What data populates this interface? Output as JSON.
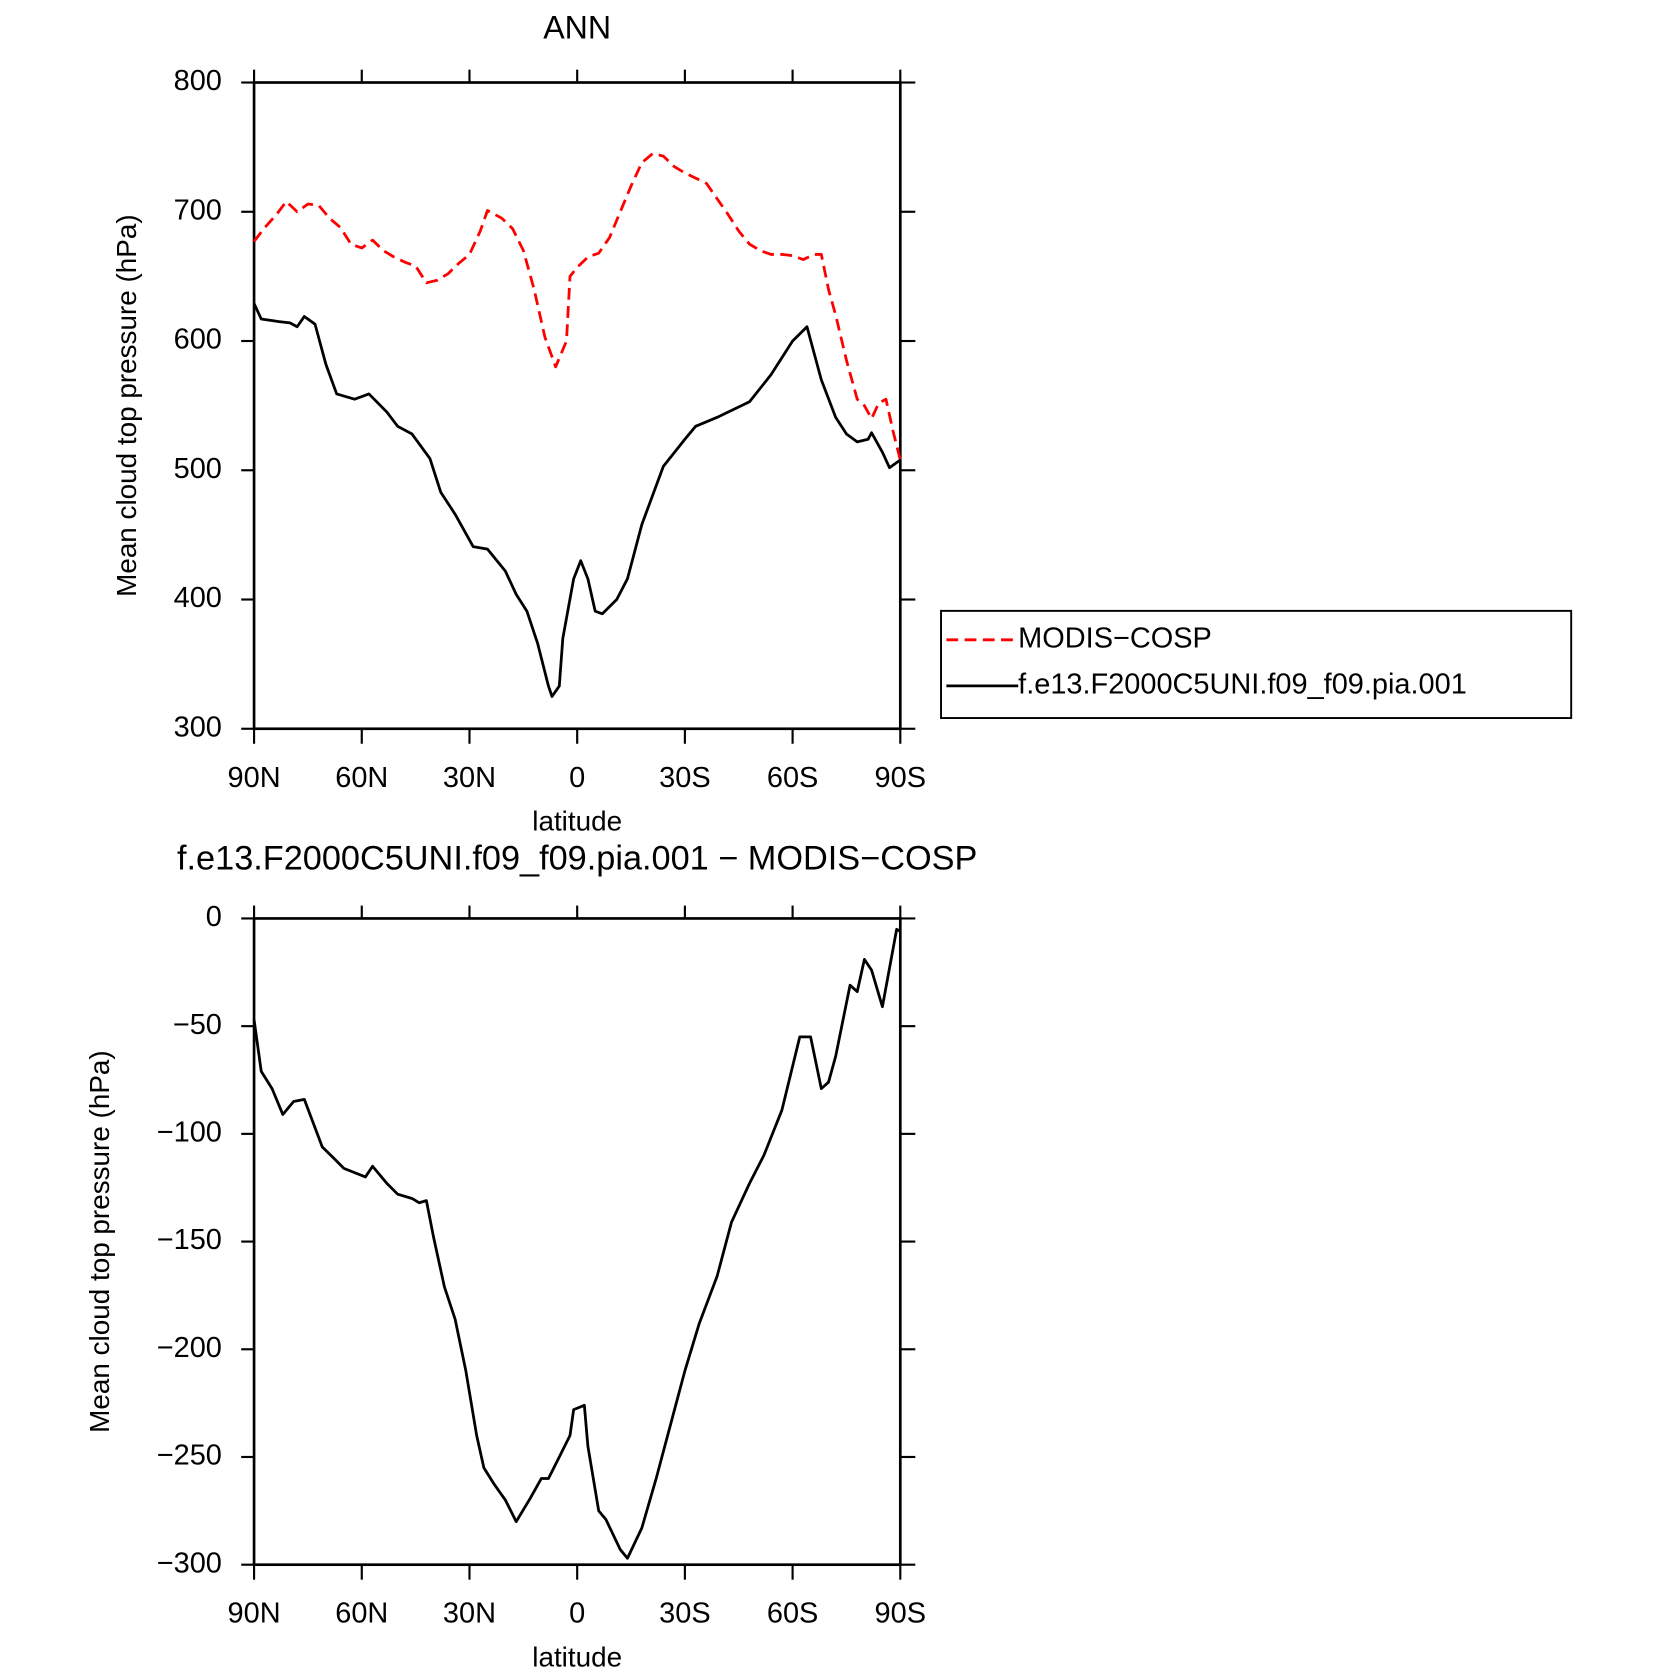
{
  "chart_data": [
    {
      "type": "line",
      "title": "ANN",
      "xlabel": "latitude",
      "ylabel": "Mean cloud top pressure (hPa)",
      "xlim": [
        90,
        -90
      ],
      "xticks": [
        {
          "value": 90,
          "label": "90N"
        },
        {
          "value": 60,
          "label": "60N"
        },
        {
          "value": 30,
          "label": "30N"
        },
        0,
        {
          "value": -30,
          "label": "30S"
        },
        {
          "value": -60,
          "label": "60S"
        },
        {
          "value": -90,
          "label": "90S"
        }
      ],
      "ylim": [
        300,
        800
      ],
      "yticks": [
        300,
        400,
        500,
        600,
        700,
        800
      ],
      "legend": "outside-right",
      "series": [
        {
          "name": "MODIS−COSP",
          "color": "#ff0000",
          "dash": "dashed",
          "x": [
            90,
            87,
            84,
            81,
            78,
            75,
            72,
            69,
            66,
            63,
            60,
            57,
            54,
            51,
            48,
            45,
            42,
            39,
            36,
            33,
            30,
            27,
            25,
            21,
            18,
            15,
            12,
            9,
            6,
            3,
            2,
            0,
            -3,
            -6,
            -9,
            -12,
            -15,
            -18,
            -21,
            -24,
            -27,
            -30,
            -33,
            -36,
            -39,
            -42,
            -45,
            -48,
            -51,
            -54,
            -57,
            -60,
            -63,
            -66,
            -68,
            -70,
            -72,
            -75,
            -78,
            -80,
            -82,
            -84,
            -86,
            -88,
            -90
          ],
          "values": [
            677,
            688,
            697,
            708,
            700,
            706,
            705,
            695,
            688,
            675,
            672,
            678,
            670,
            665,
            661,
            658,
            645,
            647,
            652,
            660,
            667,
            685,
            701,
            695,
            687,
            670,
            640,
            603,
            580,
            600,
            650,
            657,
            665,
            668,
            680,
            700,
            720,
            738,
            745,
            743,
            735,
            730,
            726,
            722,
            710,
            698,
            685,
            675,
            670,
            667,
            667,
            666,
            663,
            667,
            667,
            640,
            620,
            585,
            555,
            550,
            540,
            552,
            555,
            530,
            508
          ]
        },
        {
          "name": "f.e13.F2000C5UNI.f09_f09.pia.001",
          "color": "#000000",
          "dash": "solid",
          "x": [
            90,
            88,
            83,
            80,
            78,
            76,
            73,
            70,
            67,
            62,
            58,
            53,
            50,
            46,
            41,
            38,
            34,
            29,
            25,
            20,
            17,
            14,
            11,
            8,
            7,
            5,
            4,
            1,
            -1,
            -3,
            -5,
            -7,
            -11,
            -14,
            -18,
            -24,
            -30,
            -33,
            -39,
            -48,
            -54,
            -60,
            -64,
            -68,
            -72,
            -75,
            -78,
            -81,
            -82,
            -85,
            -87,
            -90
          ],
          "values": [
            629,
            617,
            615,
            614,
            611,
            619,
            613,
            582,
            559,
            555,
            559,
            545,
            534,
            528,
            509,
            483,
            466,
            441,
            439,
            422,
            404,
            391,
            366,
            333,
            325,
            333,
            370,
            416,
            430,
            416,
            391,
            389,
            400,
            416,
            458,
            503,
            524,
            534,
            541,
            553,
            574,
            600,
            611,
            570,
            541,
            528,
            522,
            524,
            529,
            514,
            502,
            508
          ]
        }
      ]
    },
    {
      "type": "line",
      "title": "f.e13.F2000C5UNI.f09_f09.pia.001 − MODIS−COSP",
      "xlabel": "latitude",
      "ylabel": "Mean cloud top pressure (hPa)",
      "xlim": [
        90,
        -90
      ],
      "xticks": [
        {
          "value": 90,
          "label": "90N"
        },
        {
          "value": 60,
          "label": "60N"
        },
        {
          "value": 30,
          "label": "30N"
        },
        0,
        {
          "value": -30,
          "label": "30S"
        },
        {
          "value": -60,
          "label": "60S"
        },
        {
          "value": -90,
          "label": "90S"
        }
      ],
      "ylim": [
        -300,
        0
      ],
      "yticks": [
        {
          "value": -300,
          "label": "−300"
        },
        {
          "value": -250,
          "label": "−250"
        },
        {
          "value": -200,
          "label": "−200"
        },
        {
          "value": -150,
          "label": "−150"
        },
        {
          "value": -100,
          "label": "−100"
        },
        {
          "value": -50,
          "label": "−50"
        },
        0
      ],
      "series": [
        {
          "color": "#000000",
          "dash": "solid",
          "x": [
            90,
            88,
            85,
            82,
            79,
            76,
            71,
            68,
            65,
            59,
            57,
            53,
            50,
            46,
            44,
            42,
            40,
            37,
            34,
            31,
            28,
            26,
            23,
            20,
            17,
            13,
            10,
            8,
            5,
            2,
            1,
            -2,
            -3,
            -6,
            -8,
            -12,
            -14,
            -18,
            -22,
            -26,
            -30,
            -34,
            -39,
            -43,
            -48,
            -52,
            -57,
            -62,
            -65,
            -68,
            -70,
            -72,
            -76,
            -78,
            -80,
            -82,
            -85,
            -89,
            -90
          ],
          "values": [
            -47,
            -71,
            -79,
            -91,
            -85,
            -84,
            -106,
            -111,
            -116,
            -120,
            -115,
            -123,
            -128,
            -130,
            -132,
            -131,
            -148,
            -171,
            -186,
            -210,
            -240,
            -255,
            -263,
            -270,
            -280,
            -269,
            -260,
            -260,
            -250,
            -240,
            -228,
            -226,
            -245,
            -275,
            -279,
            -293,
            -297,
            -283,
            -260,
            -235,
            -210,
            -188,
            -166,
            -141,
            -123,
            -110,
            -89,
            -55,
            -55,
            -79,
            -76,
            -64,
            -31,
            -34,
            -19,
            -24,
            -41,
            -5,
            -6
          ]
        }
      ]
    }
  ]
}
